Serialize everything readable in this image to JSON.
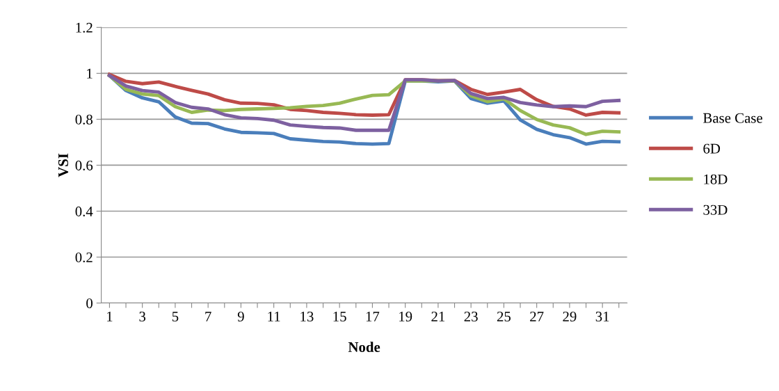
{
  "chart_data": {
    "type": "line",
    "xlabel": "Node",
    "ylabel": "VSI",
    "categories": [
      "1",
      null,
      "3",
      null,
      "5",
      null,
      "7",
      null,
      "9",
      null,
      "11",
      null,
      "13",
      null,
      "15",
      null,
      "17",
      null,
      "19",
      null,
      "21",
      null,
      "23",
      null,
      "25",
      null,
      "27",
      null,
      "29",
      null,
      "31",
      null
    ],
    "series": [
      {
        "name": "Base Case",
        "color": "#4a7ebb",
        "values": [
          0.99,
          0.925,
          0.893,
          0.876,
          0.81,
          0.783,
          0.781,
          0.758,
          0.743,
          0.741,
          0.738,
          0.715,
          0.709,
          0.703,
          0.701,
          0.694,
          0.692,
          0.694,
          0.967,
          0.967,
          0.963,
          0.967,
          0.89,
          0.87,
          0.88,
          0.797,
          0.756,
          0.733,
          0.72,
          0.692,
          0.704,
          0.702
        ]
      },
      {
        "name": "6D",
        "color": "#be4b48",
        "values": [
          0.995,
          0.965,
          0.955,
          0.962,
          0.943,
          0.926,
          0.91,
          0.885,
          0.87,
          0.869,
          0.863,
          0.843,
          0.838,
          0.83,
          0.826,
          0.82,
          0.818,
          0.82,
          0.972,
          0.972,
          0.968,
          0.969,
          0.93,
          0.908,
          0.918,
          0.93,
          0.885,
          0.856,
          0.845,
          0.818,
          0.83,
          0.828
        ]
      },
      {
        "name": "18D",
        "color": "#98b954",
        "values": [
          0.99,
          0.93,
          0.91,
          0.903,
          0.855,
          0.83,
          0.84,
          0.838,
          0.843,
          0.845,
          0.847,
          0.85,
          0.856,
          0.86,
          0.87,
          0.888,
          0.904,
          0.907,
          0.967,
          0.967,
          0.967,
          0.967,
          0.902,
          0.877,
          0.889,
          0.838,
          0.799,
          0.775,
          0.763,
          0.734,
          0.748,
          0.745
        ]
      },
      {
        "name": "33D",
        "color": "#7d60a0",
        "values": [
          0.99,
          0.945,
          0.925,
          0.918,
          0.873,
          0.852,
          0.845,
          0.82,
          0.806,
          0.803,
          0.796,
          0.775,
          0.769,
          0.764,
          0.762,
          0.752,
          0.752,
          0.752,
          0.972,
          0.972,
          0.967,
          0.969,
          0.912,
          0.89,
          0.895,
          0.873,
          0.862,
          0.855,
          0.858,
          0.855,
          0.878,
          0.882
        ]
      }
    ],
    "ylim": [
      0,
      1.2
    ],
    "yticks": [
      0,
      0.2,
      0.4,
      0.6,
      0.8,
      1,
      1.2
    ],
    "grid": "y",
    "legend": "right",
    "marker": "none",
    "line_style": "solid"
  }
}
